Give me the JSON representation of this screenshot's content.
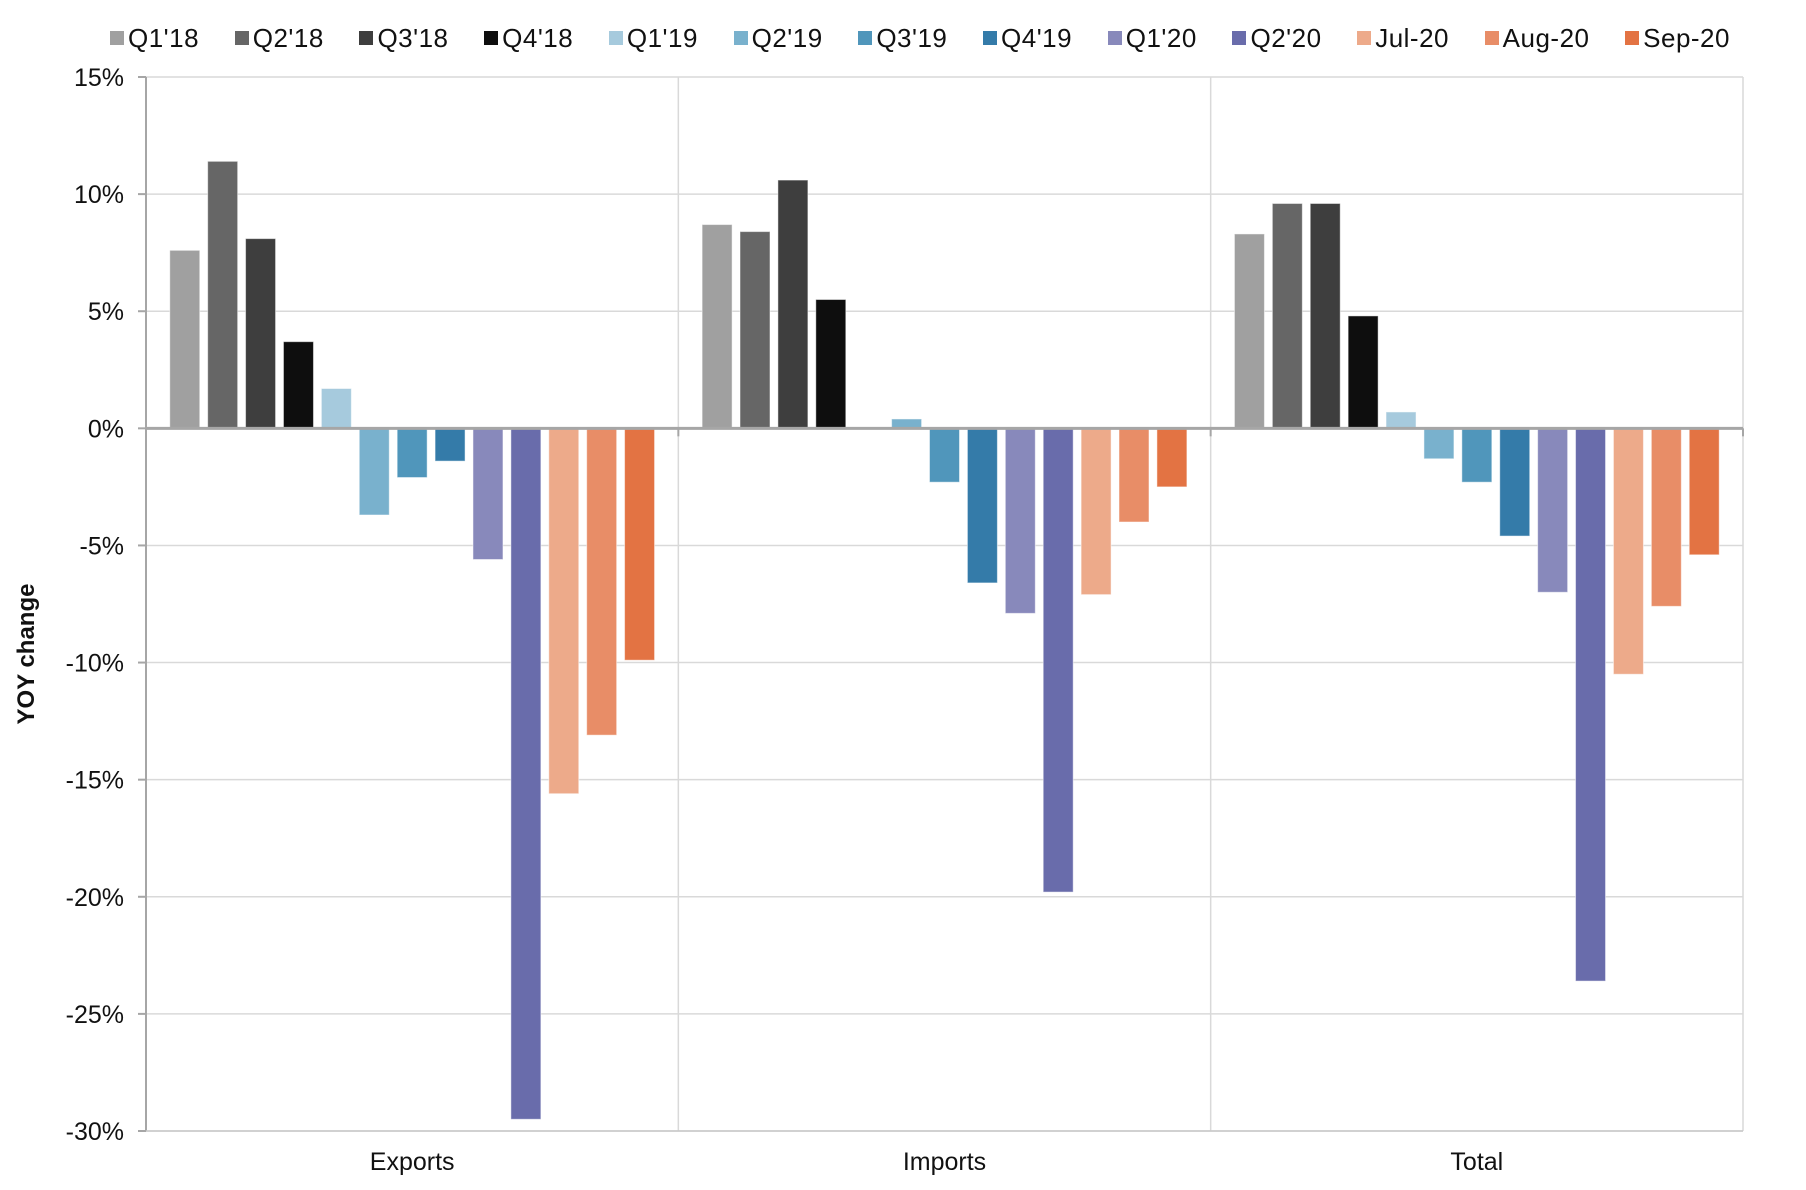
{
  "chart_data": {
    "type": "bar",
    "title": "",
    "xlabel": "",
    "ylabel": "YOY change",
    "ylim": [
      -30,
      15
    ],
    "y_ticks": [
      15,
      10,
      5,
      0,
      -5,
      -10,
      -15,
      -20,
      -25,
      -30
    ],
    "y_tick_labels": [
      "15%",
      "10%",
      "5%",
      "0%",
      "-5%",
      "-10%",
      "-15%",
      "-20%",
      "-25%",
      "-30%"
    ],
    "grid": true,
    "legend_position": "top",
    "categories": [
      "Exports",
      "Imports",
      "Total"
    ],
    "series": [
      {
        "name": "Q1'18",
        "color": "#a0a0a0",
        "values": [
          7.6,
          8.7,
          8.3
        ]
      },
      {
        "name": "Q2'18",
        "color": "#666666",
        "values": [
          11.4,
          8.4,
          9.6
        ]
      },
      {
        "name": "Q3'18",
        "color": "#3e3e3e",
        "values": [
          8.1,
          10.6,
          9.6
        ]
      },
      {
        "name": "Q4'18",
        "color": "#0e0e0e",
        "values": [
          3.7,
          5.5,
          4.8
        ]
      },
      {
        "name": "Q1'19",
        "color": "#a6cadd",
        "values": [
          1.7,
          0.05,
          0.7
        ]
      },
      {
        "name": "Q2'19",
        "color": "#79b1cd",
        "values": [
          -3.7,
          0.4,
          -1.3
        ]
      },
      {
        "name": "Q3'19",
        "color": "#5096bb",
        "values": [
          -2.1,
          -2.3,
          -2.3
        ]
      },
      {
        "name": "Q4'19",
        "color": "#347ba9",
        "values": [
          -1.4,
          -6.6,
          -4.6
        ]
      },
      {
        "name": "Q1'20",
        "color": "#8889bb",
        "values": [
          -5.6,
          -7.9,
          -7.0
        ]
      },
      {
        "name": "Q2'20",
        "color": "#696cab",
        "values": [
          -29.5,
          -19.8,
          -23.6
        ]
      },
      {
        "name": "Jul-20",
        "color": "#edaa8a",
        "values": [
          -15.6,
          -7.1,
          -10.5
        ]
      },
      {
        "name": "Aug-20",
        "color": "#e88d67",
        "values": [
          -13.1,
          -4.0,
          -7.6
        ]
      },
      {
        "name": "Sep-20",
        "color": "#e37343",
        "values": [
          -9.9,
          -2.5,
          -5.4
        ]
      }
    ]
  }
}
